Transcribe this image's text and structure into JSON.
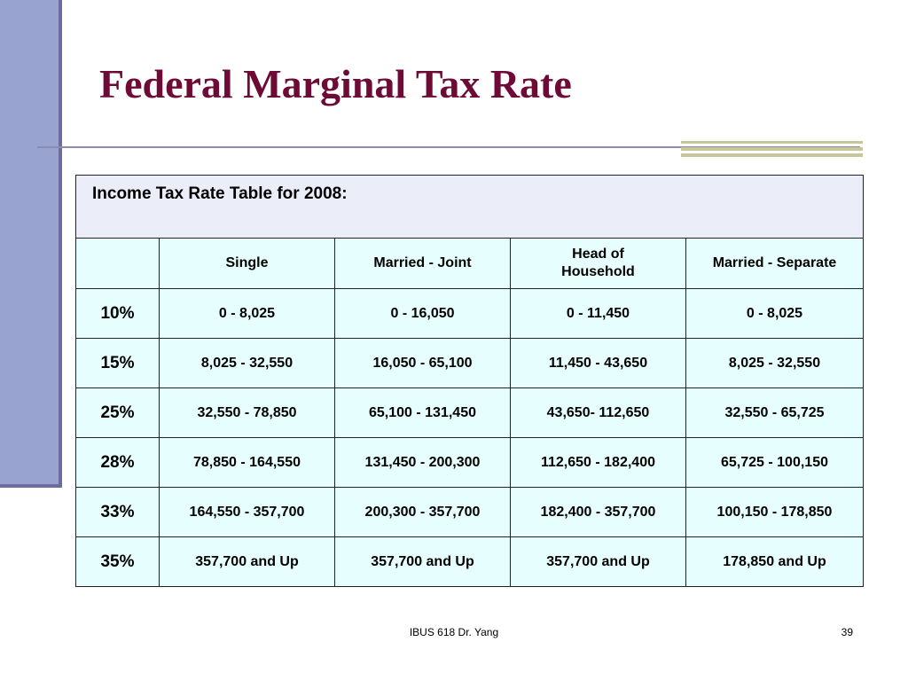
{
  "slide": {
    "title": "Federal Marginal Tax Rate",
    "colors": {
      "title": "#6e0a36",
      "left_bar": "#98a3cf",
      "table_fill": "#e6fefe",
      "caption_fill": "#ebedf8",
      "accent": "#c9c79a"
    }
  },
  "table": {
    "caption": "Income Tax Rate Table for 2008:",
    "headers": [
      "",
      "Single",
      "Married - Joint",
      "Head of Household",
      "Married - Separate"
    ],
    "rows": [
      [
        "10%",
        "0 - 8,025",
        "0 - 16,050",
        "0 - 11,450",
        "0 - 8,025"
      ],
      [
        "15%",
        "8,025 - 32,550",
        "16,050 - 65,100",
        "11,450 - 43,650",
        "8,025 - 32,550"
      ],
      [
        "25%",
        "32,550 - 78,850",
        "65,100 - 131,450",
        "43,650- 112,650",
        "32,550 - 65,725"
      ],
      [
        "28%",
        "78,850 - 164,550",
        "131,450 - 200,300",
        "112,650 - 182,400",
        "65,725 - 100,150"
      ],
      [
        "33%",
        "164,550 - 357,700",
        "200,300 - 357,700",
        "182,400 - 357,700",
        "100,150 - 178,850"
      ],
      [
        "35%",
        "357,700 and Up",
        "357,700 and Up",
        "357,700 and Up",
        "178,850 and Up"
      ]
    ]
  },
  "footer": {
    "text": "IBUS 618 Dr. Yang",
    "page_number": "39"
  }
}
